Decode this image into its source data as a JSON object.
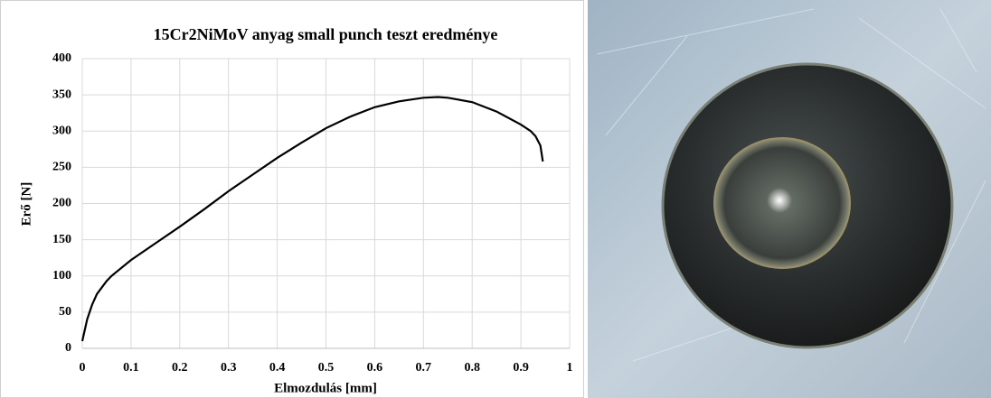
{
  "chart_data": {
    "type": "line",
    "title": "15Cr2NiMoV anyag small punch teszt eredménye",
    "xlabel": "Elmozdulás [mm]",
    "ylabel": "Erő [N]",
    "x": [
      0,
      0.01,
      0.02,
      0.03,
      0.05,
      0.06,
      0.1,
      0.15,
      0.2,
      0.25,
      0.3,
      0.35,
      0.4,
      0.45,
      0.5,
      0.55,
      0.6,
      0.65,
      0.7,
      0.73,
      0.75,
      0.8,
      0.85,
      0.9,
      0.92,
      0.93,
      0.94,
      0.945
    ],
    "values": [
      10,
      40,
      60,
      75,
      93,
      100,
      122,
      145,
      168,
      192,
      217,
      240,
      263,
      284,
      304,
      320,
      333,
      341,
      346,
      347,
      346,
      340,
      327,
      309,
      300,
      293,
      280,
      258
    ],
    "color": "#000000",
    "xlim": [
      0,
      1
    ],
    "xticks": [
      0,
      0.1,
      0.2,
      0.3,
      0.4,
      0.5,
      0.6,
      0.7,
      0.8,
      0.9,
      1
    ],
    "ylim": [
      0,
      400
    ],
    "yticks": [
      0,
      50,
      100,
      150,
      200,
      250,
      300,
      350,
      400
    ],
    "grid": true
  }
}
